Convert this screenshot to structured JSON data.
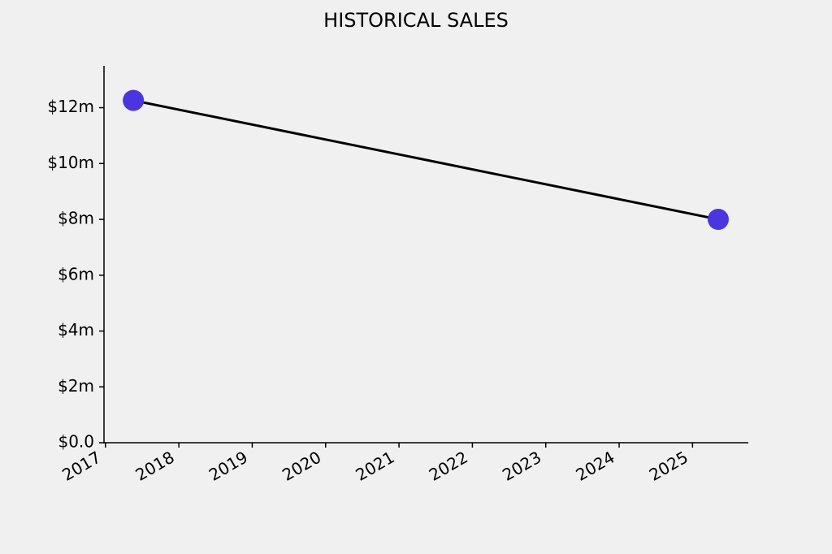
{
  "chart_data": {
    "type": "line",
    "title": "HISTORICAL SALES",
    "x": [
      2017.38,
      2025.35
    ],
    "series": [
      {
        "values": [
          12260000,
          8000000
        ],
        "color": "#4a35e0",
        "line_color": "#000000"
      }
    ],
    "xlim": [
      2016.98,
      2025.76
    ],
    "xticks": [
      2017,
      2018,
      2019,
      2020,
      2021,
      2022,
      2023,
      2024,
      2025
    ],
    "ylim": [
      0,
      13500000
    ],
    "yticks": [
      {
        "value": 0,
        "label": "$0.0"
      },
      {
        "value": 2000000,
        "label": "$2m"
      },
      {
        "value": 4000000,
        "label": "$4m"
      },
      {
        "value": 6000000,
        "label": "$6m"
      },
      {
        "value": 8000000,
        "label": "$8m"
      },
      {
        "value": 10000000,
        "label": "$10m"
      },
      {
        "value": 12000000,
        "label": "$12m"
      }
    ],
    "grid": false
  }
}
